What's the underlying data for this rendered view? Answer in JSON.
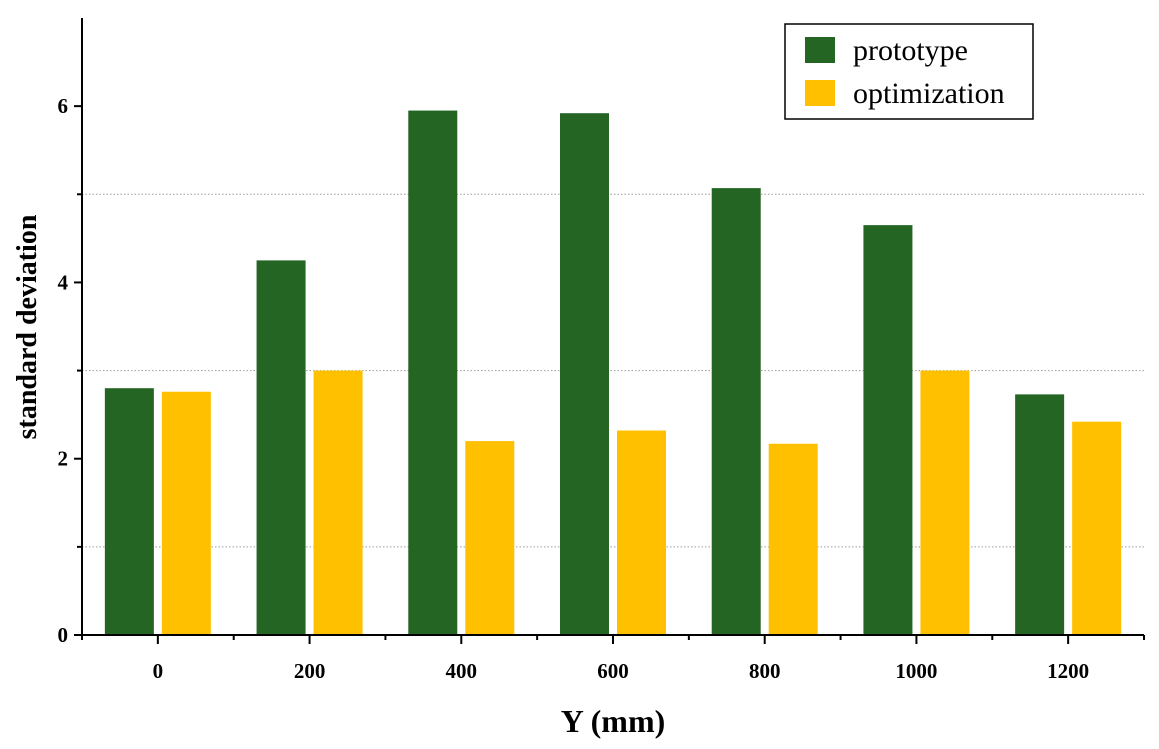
{
  "chart_data": {
    "type": "bar",
    "title": "",
    "xlabel": "Y (mm)",
    "ylabel": "standard deviation",
    "categories": [
      "0",
      "200",
      "400",
      "600",
      "800",
      "1000",
      "1200"
    ],
    "series": [
      {
        "name": "prototype",
        "color": "#246524",
        "values": [
          2.8,
          4.25,
          5.95,
          5.92,
          5.07,
          4.65,
          2.73
        ]
      },
      {
        "name": "optimization",
        "color": "#ffc000",
        "values": [
          2.76,
          3.0,
          2.2,
          2.32,
          2.17,
          3.0,
          2.42
        ]
      }
    ],
    "ylim": [
      0,
      7
    ],
    "yticks": [
      "0",
      "2",
      "4",
      "6"
    ],
    "ytick_values": [
      0,
      2,
      4,
      6
    ],
    "gridlines": [
      1,
      3,
      5
    ],
    "grid": "dotted at odd values",
    "legend_position": "top-right"
  }
}
